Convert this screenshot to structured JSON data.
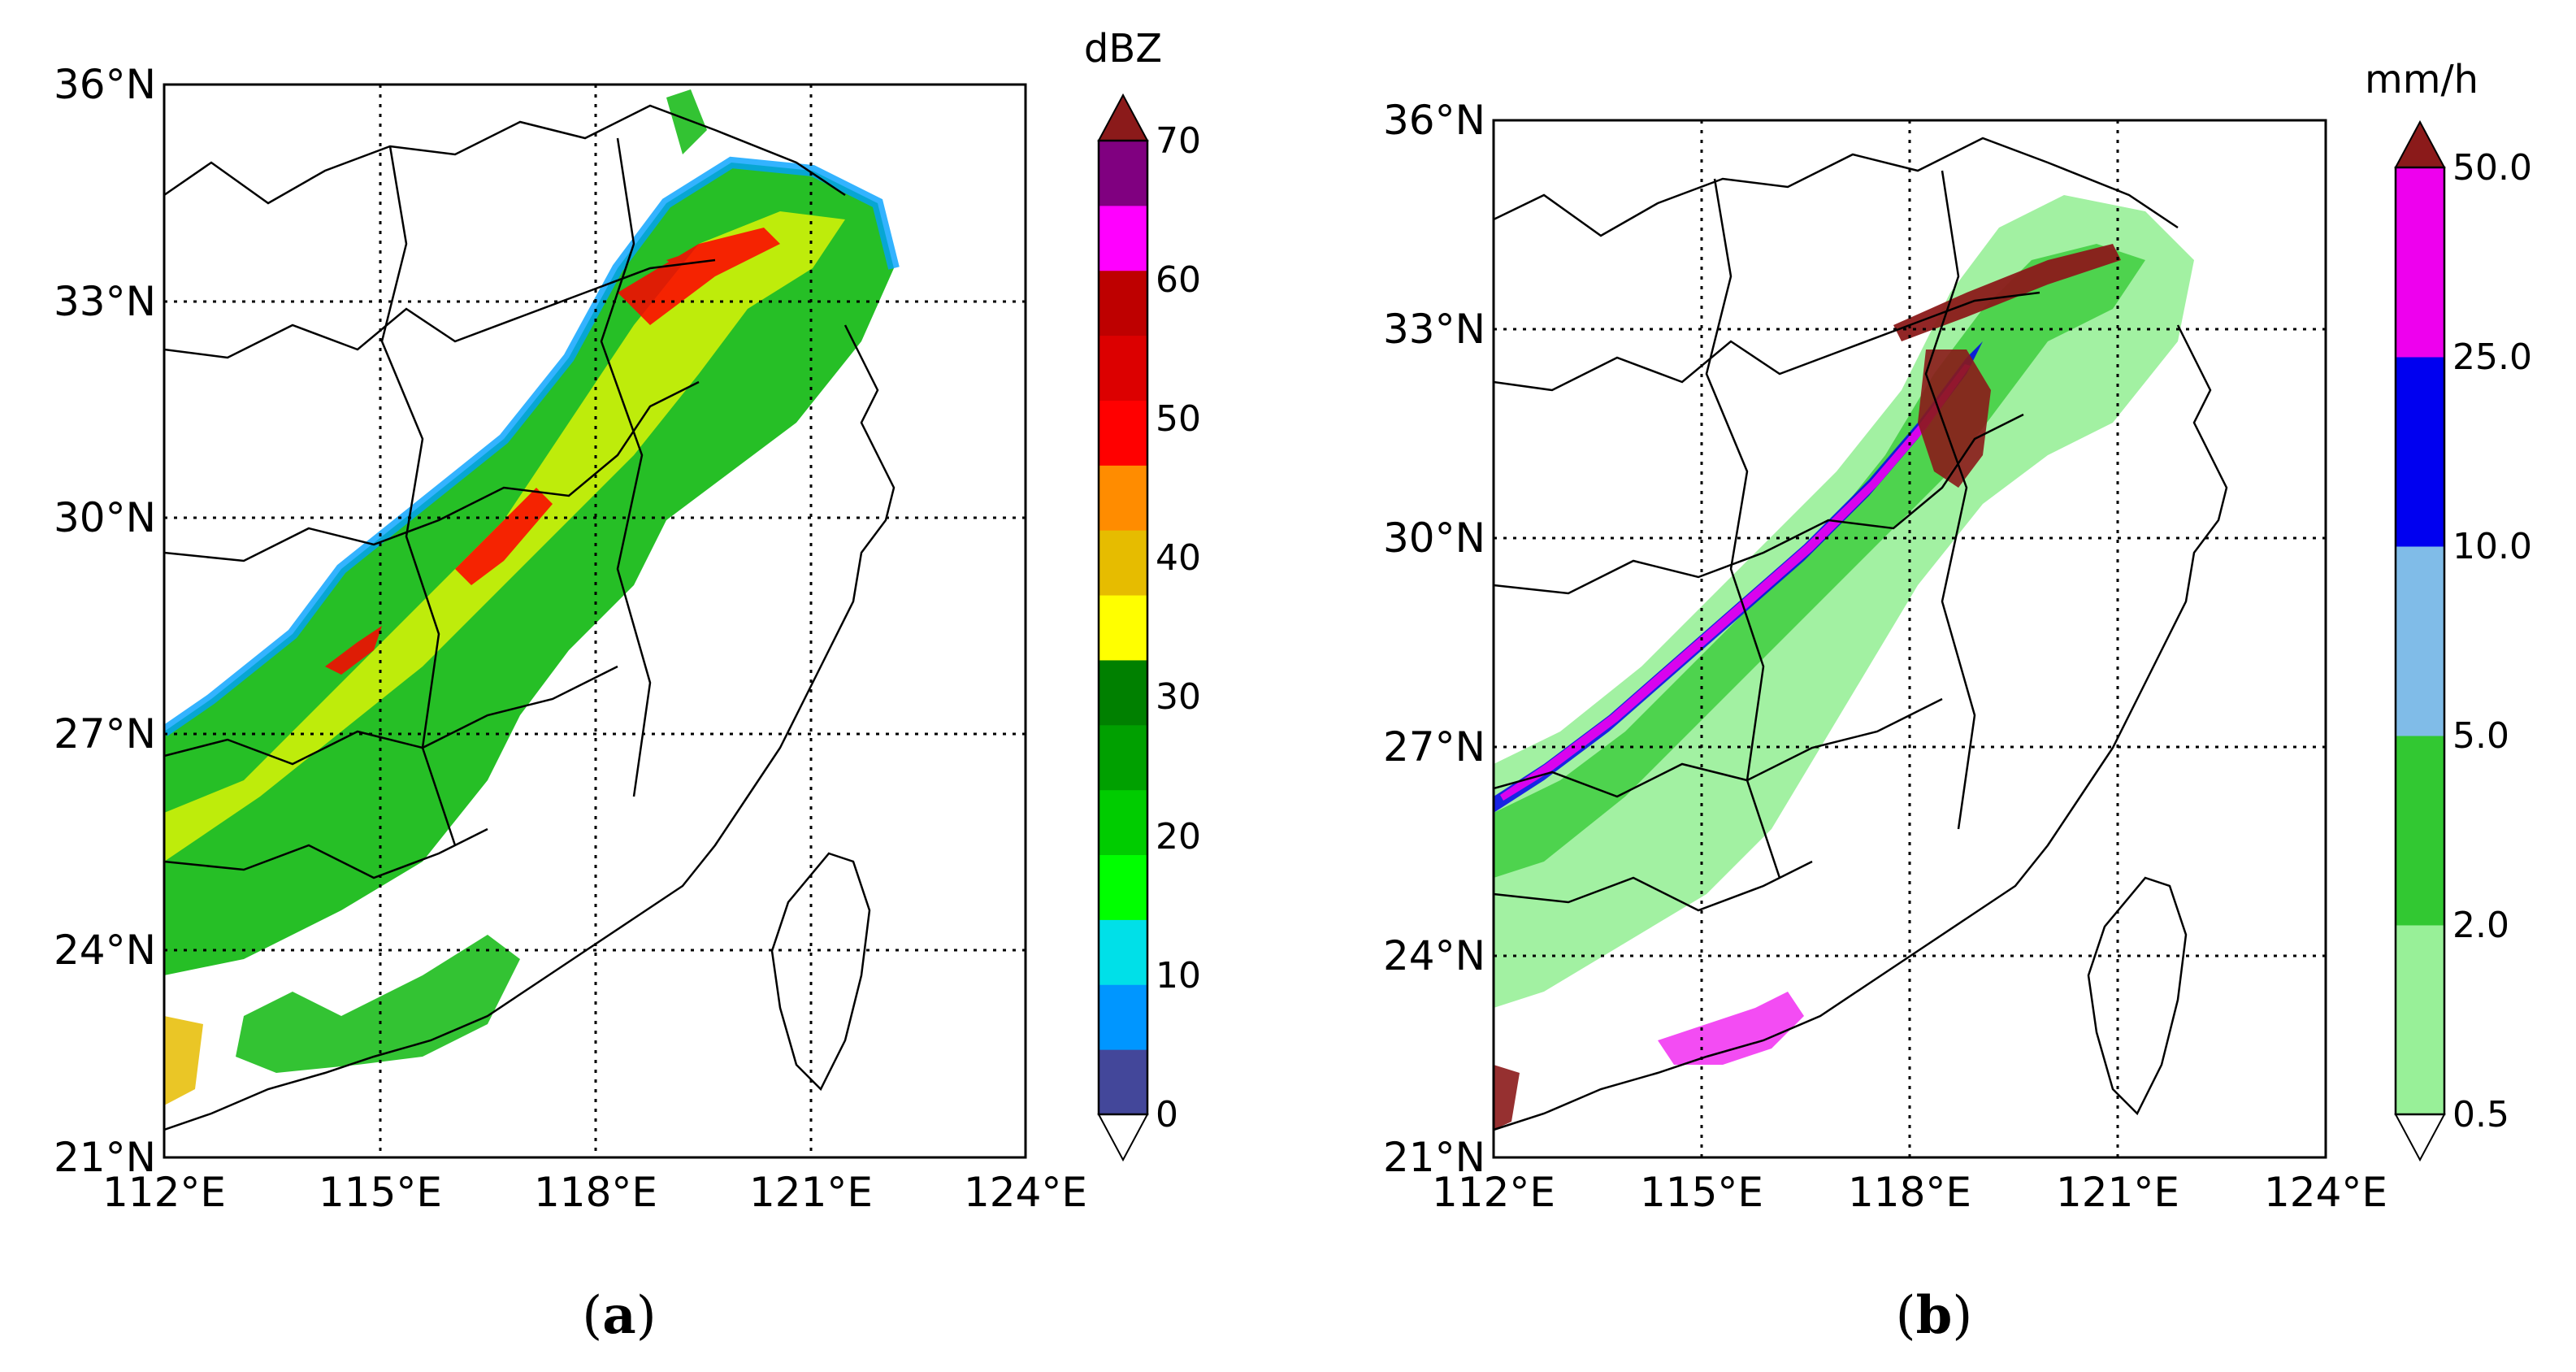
{
  "panels": [
    {
      "id": "a",
      "caption_open": "(",
      "caption_letter": "a",
      "caption_close": ")",
      "lat_labels": [
        "36°N",
        "33°N",
        "30°N",
        "27°N",
        "24°N",
        "21°N"
      ],
      "lon_labels": [
        "112°E",
        "115°E",
        "118°E",
        "121°E",
        "124°E"
      ],
      "colorbar": {
        "unit": "dBZ",
        "labels": [
          "0",
          "10",
          "20",
          "30",
          "40",
          "50",
          "60",
          "70"
        ],
        "colors": [
          "#43479a",
          "#0096ff",
          "#00e0e8",
          "#00ff00",
          "#00cc00",
          "#00a000",
          "#008000",
          "#ffff00",
          "#e6bc00",
          "#ff8c00",
          "#ff0000",
          "#dc0000",
          "#be0000",
          "#ff00ff",
          "#800080"
        ],
        "over_color": "#8b1a1a",
        "under_color": "#ffffff"
      }
    },
    {
      "id": "b",
      "caption_open": "(",
      "caption_letter": "b",
      "caption_close": ")",
      "lat_labels": [
        "36°N",
        "33°N",
        "30°N",
        "27°N",
        "24°N",
        "21°N"
      ],
      "lon_labels": [
        "112°E",
        "115°E",
        "118°E",
        "121°E",
        "124°E"
      ],
      "colorbar": {
        "unit": "mm/h",
        "labels": [
          "0.5",
          "2.0",
          "5.0",
          "10.0",
          "25.0",
          "50.0"
        ],
        "colors": [
          "#98f098",
          "#32c832",
          "#80bce8",
          "#0000f0",
          "#ee00ee"
        ],
        "over_color": "#8b1a1a",
        "under_color": "#ffffff"
      }
    }
  ],
  "palette": {
    "reflectivity_low": "#00b400",
    "reflectivity_mid": "#ffff00",
    "reflectivity_high": "#ff0000",
    "reflectivity_edge": "#00a0ff",
    "rain_light": "#98f098",
    "rain_moderate": "#32c832",
    "rain_heavy": "#0000f0",
    "rain_severe": "#ee00ee",
    "rain_extreme": "#8b1a1a"
  }
}
